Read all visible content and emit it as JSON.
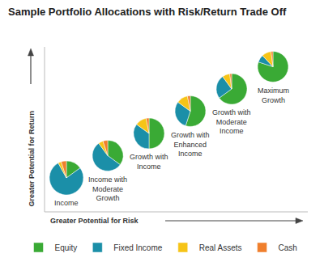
{
  "chart_data": {
    "type": "pie",
    "title": "Sample Portfolio Allocations with Risk/Return Trade Off",
    "x_label": "Greater Potential for Risk",
    "y_label": "Greater Potential for Return",
    "categories": [
      "Equity",
      "Fixed Income",
      "Real Assets",
      "Cash"
    ],
    "colors": [
      "#3aaa35",
      "#1b8fa8",
      "#f6c417",
      "#f07f2c"
    ],
    "series": [
      {
        "name": "Income",
        "values": [
          15,
          77,
          3,
          5
        ]
      },
      {
        "name": "Income with Moderate Growth",
        "values": [
          35,
          55,
          5,
          5
        ]
      },
      {
        "name": "Growth with Income",
        "values": [
          50,
          35,
          12,
          3
        ]
      },
      {
        "name": "Growth with Enhanced Income",
        "values": [
          55,
          30,
          12,
          3
        ]
      },
      {
        "name": "Growth with Moderate Income",
        "values": [
          65,
          25,
          8,
          2
        ]
      },
      {
        "name": "Maximum Growth",
        "values": [
          80,
          8,
          10,
          2
        ]
      }
    ],
    "legend": "bottom",
    "tick_labels": false
  }
}
